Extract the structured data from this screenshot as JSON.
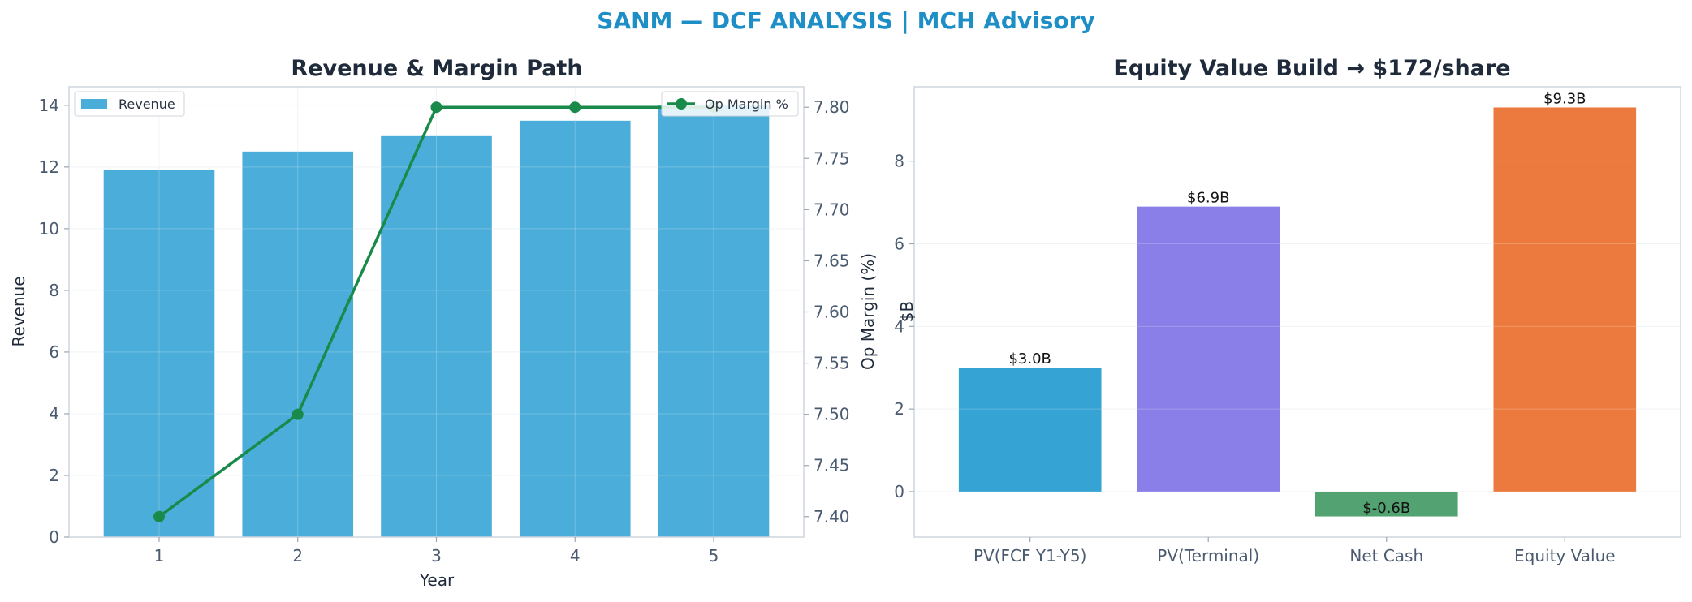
{
  "suptitle": "SANM — DCF ANALYSIS | MCH Advisory",
  "colors": {
    "suptitle": "#1e8fc6",
    "revenue_bar": "#4badd9",
    "op_margin_line": "#1a8a4a",
    "pv_fcf": "#35a3d4",
    "pv_terminal": "#8a7ee8",
    "net_cash": "#4a9e6a",
    "equity_value": "#ec7a3e"
  },
  "chart_data": [
    {
      "type": "bar",
      "title": "Revenue & Margin Path",
      "xlabel": "Year",
      "ylabel": "Revenue",
      "y2label": "Op Margin (%)",
      "categories": [
        "1",
        "2",
        "3",
        "4",
        "5"
      ],
      "series": [
        {
          "name": "Revenue",
          "type": "bar",
          "axis": "left",
          "values": [
            11.9,
            12.5,
            13.0,
            13.5,
            14.0
          ]
        },
        {
          "name": "Op Margin %",
          "type": "line",
          "axis": "right",
          "values": [
            7.4,
            7.5,
            7.8,
            7.8,
            7.8
          ]
        }
      ],
      "ylim": [
        0,
        14.6
      ],
      "yticks": [
        "0",
        "2",
        "4",
        "6",
        "8",
        "10",
        "12",
        "14"
      ],
      "y2lim": [
        7.38,
        7.82
      ],
      "y2ticks": [
        "7.40",
        "7.45",
        "7.50",
        "7.55",
        "7.60",
        "7.65",
        "7.70",
        "7.75",
        "7.80"
      ],
      "legend": [
        {
          "label": "Revenue",
          "placement": "top-left"
        },
        {
          "label": "Op Margin %",
          "placement": "top-right"
        }
      ],
      "grid": true
    },
    {
      "type": "bar",
      "title": "Equity Value Build → $172/share",
      "xlabel": "",
      "ylabel": "$B",
      "categories": [
        "PV(FCF Y1-Y5)",
        "PV(Terminal)",
        "Net Cash",
        "Equity Value"
      ],
      "values": [
        3.0,
        6.9,
        -0.6,
        9.3
      ],
      "data_labels": [
        "$3.0B",
        "$6.9B",
        "$-0.6B",
        "$9.3B"
      ],
      "ylim": [
        -1.1,
        9.8
      ],
      "yticks": [
        "0",
        "2",
        "4",
        "6",
        "8"
      ],
      "grid": true
    }
  ]
}
